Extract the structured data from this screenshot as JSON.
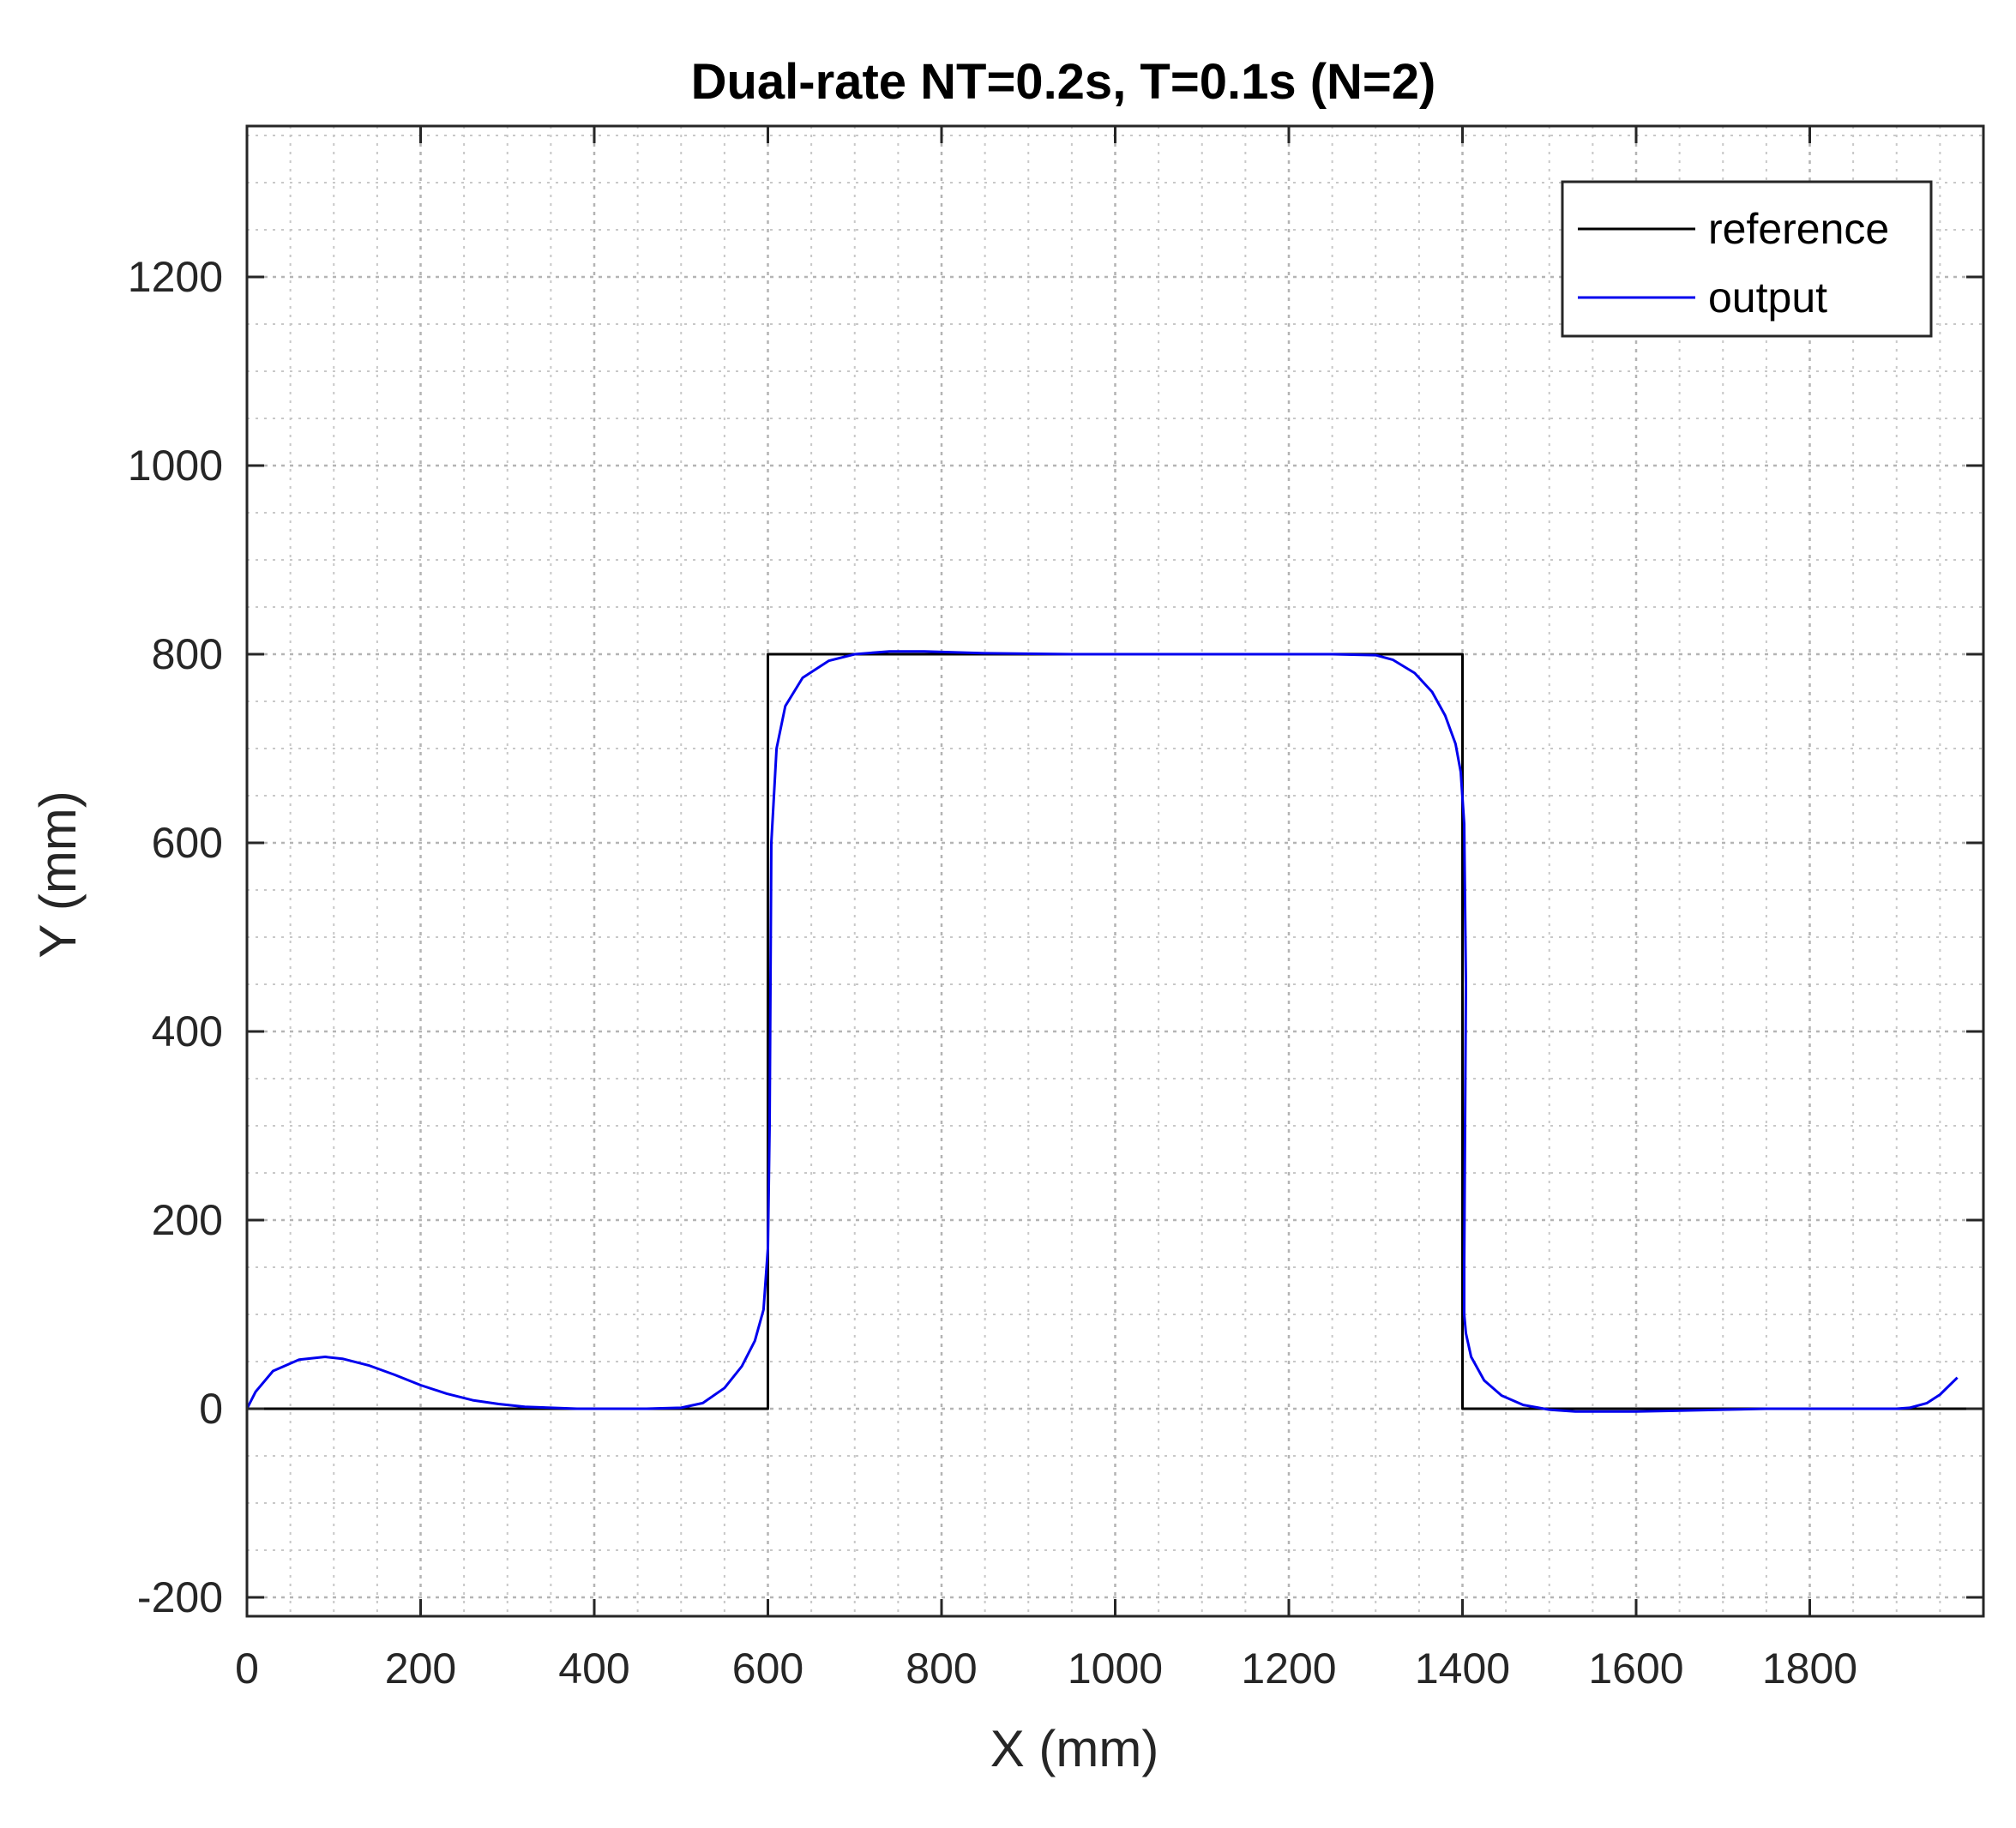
{
  "chart_data": {
    "type": "line",
    "title": "Dual-rate NT=0.2s, T=0.1s (N=2)",
    "xlabel": "X (mm)",
    "ylabel": "Y (mm)",
    "xlim": [
      0,
      2000
    ],
    "ylim": [
      -220,
      1360
    ],
    "xticks": [
      0,
      200,
      400,
      600,
      800,
      1000,
      1200,
      1400,
      1600,
      1800
    ],
    "yticks": [
      -200,
      0,
      200,
      400,
      600,
      800,
      1000,
      1200
    ],
    "xtick_labels": [
      "0",
      "200",
      "400",
      "600",
      "800",
      "1000",
      "1200",
      "1400",
      "1600",
      "1800"
    ],
    "ytick_labels": [
      "-200",
      "0",
      "200",
      "400",
      "600",
      "800",
      "1000",
      "1200"
    ],
    "grid": true,
    "minor_grid": true,
    "legend_position": "top-right",
    "series": [
      {
        "name": "reference",
        "color": "#000000",
        "x": [
          0,
          600,
          600,
          1400,
          1400,
          2000
        ],
        "y": [
          0,
          0,
          800,
          800,
          0,
          0
        ]
      },
      {
        "name": "output",
        "color": "#0000ee",
        "x": [
          0,
          10,
          30,
          60,
          90,
          110,
          140,
          170,
          200,
          230,
          260,
          290,
          320,
          350,
          380,
          420,
          460,
          500,
          525,
          550,
          570,
          585,
          595,
          600,
          602,
          603,
          604,
          610,
          620,
          640,
          670,
          700,
          740,
          780,
          850,
          950,
          1050,
          1150,
          1250,
          1300,
          1320,
          1345,
          1365,
          1380,
          1392,
          1398,
          1402,
          1404,
          1403,
          1402,
          1402,
          1404,
          1410,
          1425,
          1445,
          1470,
          1500,
          1530,
          1560,
          1600,
          1650,
          1700,
          1750,
          1800,
          1850,
          1880,
          1900,
          1915,
          1935,
          1950,
          1970
        ],
        "y": [
          0,
          18,
          40,
          52,
          55,
          53,
          46,
          36,
          25,
          16,
          9,
          5,
          2,
          1,
          0,
          0,
          0,
          1,
          6,
          22,
          45,
          72,
          105,
          170,
          300,
          450,
          600,
          700,
          745,
          775,
          793,
          800,
          803,
          803,
          801,
          800,
          800,
          800,
          800,
          799,
          794,
          780,
          760,
          735,
          705,
          675,
          620,
          450,
          300,
          150,
          100,
          80,
          55,
          30,
          14,
          4,
          -1,
          -3,
          -3,
          -3,
          -2,
          -1,
          0,
          0,
          0,
          0,
          0,
          1,
          6,
          15,
          33
        ]
      }
    ]
  }
}
